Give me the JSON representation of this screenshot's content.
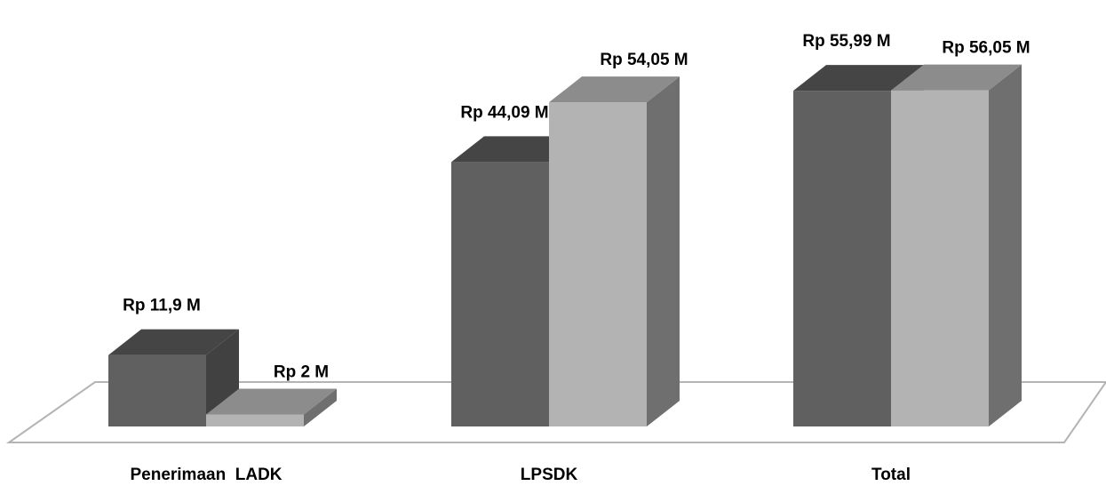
{
  "chart_data": {
    "type": "bar",
    "style": "3d-clustered-column",
    "categories": [
      "Penerimaan  LADK",
      "LPSDK",
      "Total"
    ],
    "series": [
      {
        "values": [
          11.9,
          44.09,
          55.99
        ],
        "labels": [
          "Rp 11,9 M",
          "Rp 44,09 M",
          "Rp 55,99 M"
        ],
        "color": "#606060"
      },
      {
        "values": [
          2,
          54.05,
          56.05
        ],
        "labels": [
          "Rp 2 M",
          "Rp 54,05 M",
          "Rp 56,05 M"
        ],
        "color": "#b3b3b3"
      }
    ],
    "title": "",
    "xlabel": "",
    "ylabel": "",
    "ylim": [
      0,
      60
    ],
    "grid": false,
    "legend": "none"
  }
}
